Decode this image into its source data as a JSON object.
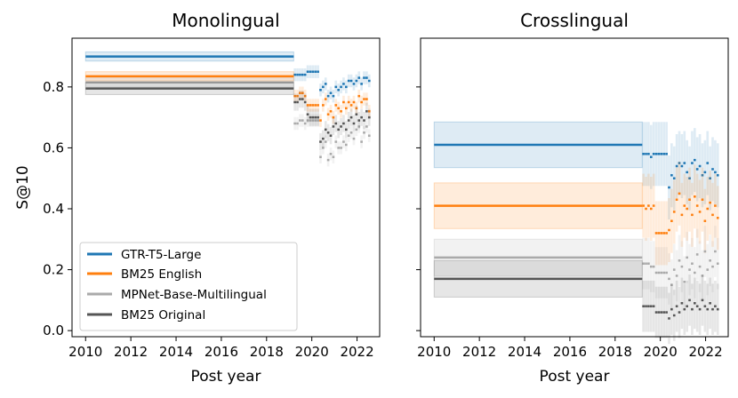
{
  "chart_data": {
    "type": "line",
    "ylabel": "S@10",
    "xlabel": "Post year",
    "ylim": [
      -0.02,
      0.96
    ],
    "xlim": [
      2009.4,
      2023.0
    ],
    "x_ticks": [
      "2010",
      "2012",
      "2014",
      "2016",
      "2018",
      "2020",
      "2022"
    ],
    "y_ticks": [
      "0.0",
      "0.2",
      "0.4",
      "0.6",
      "0.8"
    ],
    "legend_position": "lower-left",
    "baseline_period": [
      2010.0,
      2019.2
    ],
    "monthly_start": 2019.2,
    "series_meta": [
      {
        "name": "GTR-T5-Large",
        "color": "#1f77b4"
      },
      {
        "name": "BM25 English",
        "color": "#ff7f0e"
      },
      {
        "name": "MPNet-Base-Multilingual",
        "color": "#aaaaaa"
      },
      {
        "name": "BM25 Original",
        "color": "#555555"
      }
    ],
    "panels": [
      {
        "title": "Monolingual",
        "series": [
          {
            "name": "GTR-T5-Large",
            "baseline": 0.9,
            "ci": 0.015,
            "values": [
              0.84,
              0.84,
              0.84,
              0.84,
              0.84,
              0.85,
              0.85,
              0.85,
              0.85,
              0.85,
              0.79,
              0.8,
              0.81,
              0.77,
              0.78,
              0.77,
              0.8,
              0.79,
              0.8,
              0.81,
              0.8,
              0.82,
              0.82,
              0.81,
              0.82,
              0.83,
              0.81,
              0.83,
              0.83,
              0.82
            ]
          },
          {
            "name": "BM25 English",
            "baseline": 0.835,
            "ci": 0.015,
            "values": [
              0.77,
              0.77,
              0.78,
              0.78,
              0.77,
              0.74,
              0.74,
              0.74,
              0.74,
              0.74,
              0.69,
              0.74,
              0.76,
              0.71,
              0.72,
              0.7,
              0.74,
              0.73,
              0.72,
              0.75,
              0.73,
              0.75,
              0.74,
              0.75,
              0.73,
              0.77,
              0.75,
              0.76,
              0.76,
              0.72
            ]
          },
          {
            "name": "MPNet-Base-Multilingual",
            "baseline": 0.815,
            "ci": 0.015,
            "values": [
              0.68,
              0.68,
              0.69,
              0.69,
              0.68,
              0.69,
              0.69,
              0.69,
              0.69,
              0.69,
              0.57,
              0.6,
              0.62,
              0.56,
              0.58,
              0.57,
              0.62,
              0.6,
              0.6,
              0.62,
              0.61,
              0.64,
              0.65,
              0.63,
              0.66,
              0.67,
              0.62,
              0.65,
              0.67,
              0.64
            ]
          },
          {
            "name": "BM25 Original",
            "baseline": 0.795,
            "ci": 0.02,
            "values": [
              0.75,
              0.75,
              0.76,
              0.76,
              0.75,
              0.71,
              0.7,
              0.7,
              0.7,
              0.7,
              0.62,
              0.63,
              0.66,
              0.65,
              0.64,
              0.67,
              0.68,
              0.66,
              0.67,
              0.68,
              0.66,
              0.69,
              0.7,
              0.68,
              0.71,
              0.69,
              0.7,
              0.69,
              0.72,
              0.7
            ]
          }
        ]
      },
      {
        "title": "Crosslingual",
        "series": [
          {
            "name": "GTR-T5-Large",
            "baseline": 0.61,
            "ci": 0.075,
            "values": [
              0.58,
              0.58,
              0.58,
              0.57,
              0.58,
              0.58,
              0.58,
              0.58,
              0.58,
              0.58,
              0.47,
              0.51,
              0.5,
              0.54,
              0.55,
              0.54,
              0.55,
              0.52,
              0.5,
              0.55,
              0.56,
              0.53,
              0.54,
              0.51,
              0.52,
              0.55,
              0.5,
              0.53,
              0.52,
              0.51
            ]
          },
          {
            "name": "BM25 English",
            "baseline": 0.41,
            "ci": 0.075,
            "values": [
              0.41,
              0.4,
              0.41,
              0.4,
              0.41,
              0.32,
              0.32,
              0.32,
              0.32,
              0.32,
              0.33,
              0.36,
              0.39,
              0.43,
              0.45,
              0.38,
              0.41,
              0.4,
              0.43,
              0.38,
              0.44,
              0.41,
              0.39,
              0.43,
              0.36,
              0.4,
              0.42,
              0.38,
              0.41,
              0.37
            ]
          },
          {
            "name": "MPNet-Base-Multilingual",
            "baseline": 0.24,
            "ci": 0.06,
            "values": [
              0.22,
              0.22,
              0.22,
              0.21,
              0.21,
              0.19,
              0.19,
              0.19,
              0.19,
              0.19,
              0.17,
              0.15,
              0.2,
              0.18,
              0.23,
              0.21,
              0.16,
              0.24,
              0.2,
              0.22,
              0.19,
              0.25,
              0.21,
              0.18,
              0.26,
              0.2,
              0.23,
              0.21,
              0.26,
              0.22
            ]
          },
          {
            "name": "BM25 Original",
            "baseline": 0.17,
            "ci": 0.06,
            "values": [
              0.08,
              0.08,
              0.08,
              0.08,
              0.08,
              0.06,
              0.06,
              0.06,
              0.06,
              0.06,
              0.04,
              0.07,
              0.05,
              0.08,
              0.06,
              0.09,
              0.07,
              0.08,
              0.1,
              0.07,
              0.09,
              0.08,
              0.07,
              0.1,
              0.08,
              0.07,
              0.09,
              0.07,
              0.08,
              0.07
            ]
          }
        ]
      }
    ]
  },
  "legend": {
    "items": [
      {
        "label": "GTR-T5-Large",
        "color": "#1f77b4"
      },
      {
        "label": "BM25 English",
        "color": "#ff7f0e"
      },
      {
        "label": "MPNet-Base-Multilingual",
        "color": "#aaaaaa"
      },
      {
        "label": "BM25 Original",
        "color": "#555555"
      }
    ]
  }
}
